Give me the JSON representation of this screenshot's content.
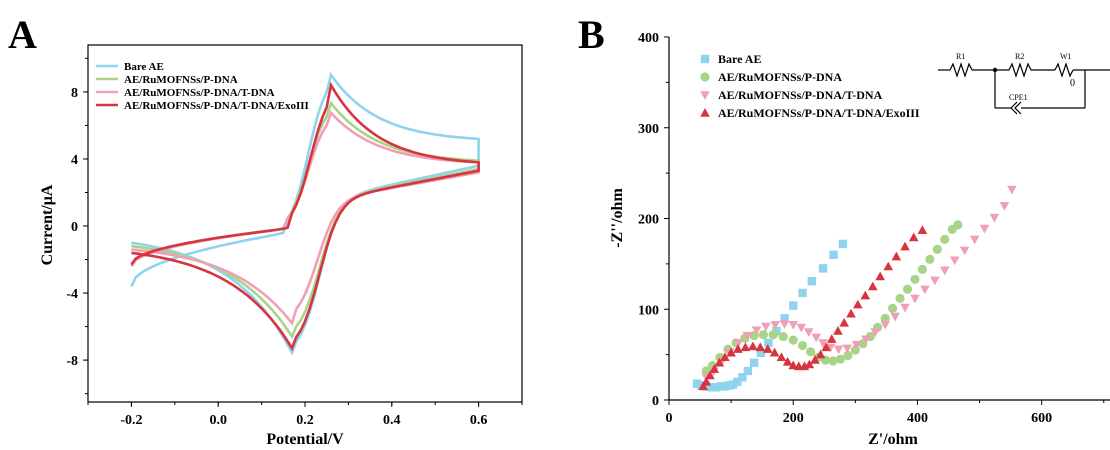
{
  "chart_data": [
    {
      "panel": "A",
      "type": "line",
      "xlabel": "Potential/V",
      "ylabel": "Current/μA",
      "xlim": [
        -0.3,
        0.7
      ],
      "ylim": [
        -10.5,
        10.8
      ],
      "xticks": [
        -0.2,
        0.0,
        0.2,
        0.4,
        0.6
      ],
      "xticklabels": [
        "-0.2",
        "0.0",
        "0.2",
        "0.4",
        "0.6"
      ],
      "yticks": [
        -8,
        -4,
        0,
        4,
        8
      ],
      "yticklabels": [
        "-8",
        "-4",
        "0",
        "4",
        "8"
      ],
      "legend_position": "top-left",
      "series": [
        {
          "name": "Bare AE",
          "color": "#8fd3ee",
          "start": [
            -0.2,
            -3.6
          ],
          "anodic_peak": [
            0.255,
            9.2
          ],
          "switch_top": [
            0.6,
            5.2
          ],
          "switch_bottom": [
            0.6,
            3.6
          ],
          "cathodic_peak": [
            0.175,
            -7.8
          ],
          "end": [
            -0.2,
            -1.0
          ]
        },
        {
          "name": "AE/RuMOFNSs/P-DNA",
          "color": "#a8d488",
          "start": [
            -0.2,
            -2.4
          ],
          "anodic_peak": [
            0.255,
            7.5
          ],
          "switch_top": [
            0.6,
            3.9
          ],
          "switch_bottom": [
            0.6,
            3.4
          ],
          "cathodic_peak": [
            0.175,
            -6.8
          ],
          "end": [
            -0.2,
            -1.2
          ]
        },
        {
          "name": "AE/RuMOFNSs/P-DNA/T-DNA",
          "color": "#ef9fb6",
          "start": [
            -0.2,
            -2.4
          ],
          "anodic_peak": [
            0.255,
            6.9
          ],
          "switch_top": [
            0.6,
            3.8
          ],
          "switch_bottom": [
            0.6,
            3.2
          ],
          "cathodic_peak": [
            0.17,
            -5.8
          ],
          "end": [
            -0.2,
            -1.4
          ]
        },
        {
          "name": "AE/RuMOFNSs/P-DNA/T-DNA/ExoIII",
          "color": "#d8343f",
          "start": [
            -0.2,
            -2.3
          ],
          "anodic_peak": [
            0.26,
            8.4
          ],
          "switch_top": [
            0.6,
            3.8
          ],
          "switch_bottom": [
            0.6,
            3.3
          ],
          "cathodic_peak": [
            0.175,
            -7.5
          ],
          "end": [
            -0.2,
            -1.6
          ]
        }
      ]
    },
    {
      "panel": "B",
      "type": "scatter",
      "xlabel": "Z'/ohm",
      "ylabel": "-Z''/ohm",
      "xlim": [
        0,
        710
      ],
      "ylim": [
        0,
        400
      ],
      "xticks": [
        0,
        200,
        400,
        600
      ],
      "xticklabels": [
        "0",
        "200",
        "400",
        "600"
      ],
      "yticks": [
        0,
        100,
        200,
        300,
        400
      ],
      "yticklabels": [
        "0",
        "100",
        "200",
        "300",
        "400"
      ],
      "legend_position": "top-left",
      "series": [
        {
          "name": "Bare AE",
          "marker": "square",
          "color": "#8fd3ee",
          "x": [
            45,
            52,
            60,
            68,
            75,
            83,
            90,
            97,
            103,
            110,
            118,
            127,
            137,
            148,
            160,
            173,
            186,
            200,
            215,
            230,
            248,
            265,
            280
          ],
          "y": [
            18,
            16,
            15,
            14,
            14,
            15,
            15,
            16,
            17,
            20,
            25,
            32,
            41,
            52,
            63,
            76,
            90,
            104,
            118,
            131,
            145,
            160,
            172
          ]
        },
        {
          "name": "AE/RuMOFNSs/P-DNA",
          "marker": "circle",
          "color": "#a8d488",
          "x": [
            60,
            70,
            82,
            95,
            108,
            122,
            137,
            152,
            168,
            184,
            200,
            215,
            228,
            240,
            252,
            264,
            276,
            288,
            300,
            312,
            324,
            336,
            348,
            360,
            372,
            384,
            396,
            408,
            420,
            432,
            444,
            456,
            465
          ],
          "y": [
            32,
            38,
            47,
            56,
            63,
            68,
            71,
            72,
            72,
            70,
            66,
            60,
            53,
            47,
            44,
            43,
            45,
            49,
            55,
            62,
            70,
            80,
            90,
            101,
            112,
            122,
            133,
            144,
            155,
            166,
            177,
            188,
            193
          ]
        },
        {
          "name": "AE/RuMOFNSs/P-DNA/T-DNA",
          "marker": "triangle-down",
          "color": "#ef9fb6",
          "x": [
            60,
            72,
            85,
            98,
            112,
            126,
            141,
            156,
            171,
            186,
            200,
            213,
            225,
            237,
            248,
            260,
            273,
            287,
            302,
            317,
            332,
            348,
            364,
            380,
            396,
            412,
            428,
            444,
            460,
            476,
            492,
            508,
            524,
            540,
            552
          ],
          "y": [
            25,
            32,
            42,
            53,
            63,
            71,
            77,
            81,
            83,
            84,
            83,
            80,
            75,
            69,
            63,
            58,
            56,
            57,
            61,
            67,
            75,
            83,
            92,
            102,
            112,
            122,
            132,
            143,
            154,
            165,
            177,
            189,
            201,
            214,
            232
          ]
        },
        {
          "name": "AE/RuMOFNSs/P-DNA/T-DNA/ExoIII",
          "marker": "triangle-up",
          "color": "#d8343f",
          "x": [
            55,
            60,
            66,
            73,
            81,
            90,
            100,
            111,
            123,
            135,
            147,
            159,
            170,
            181,
            191,
            200,
            209,
            218,
            226,
            235,
            244,
            253,
            262,
            272,
            282,
            293,
            304,
            316,
            328,
            340,
            353,
            366,
            380,
            394,
            408
          ],
          "y": [
            15,
            20,
            27,
            34,
            41,
            47,
            52,
            56,
            58,
            59,
            58,
            56,
            52,
            47,
            42,
            38,
            37,
            37,
            39,
            44,
            50,
            58,
            67,
            76,
            85,
            95,
            105,
            115,
            125,
            136,
            147,
            158,
            169,
            179,
            187
          ]
        }
      ],
      "inset": {
        "labels": [
          "R1",
          "R2",
          "W1",
          "0",
          "CPE1"
        ]
      }
    }
  ],
  "panels": {
    "A": "A",
    "B": "B"
  }
}
